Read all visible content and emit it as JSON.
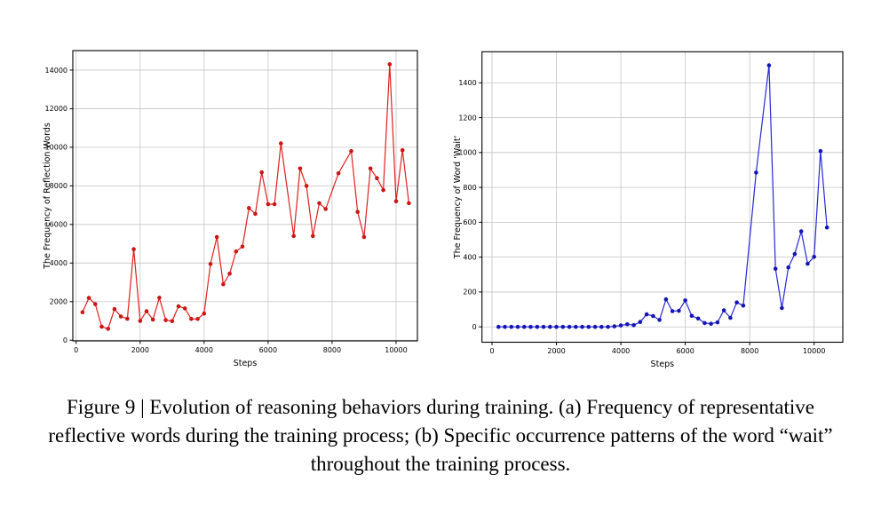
{
  "figure": {
    "caption_lines": [
      "Figure 9 | Evolution of reasoning behaviors during training. (a) Frequency of representative",
      "reflective words during the training process; (b) Specific occurrence patterns of the word “wait”",
      "throughout the training process."
    ]
  },
  "chart_data": [
    {
      "id": "reflection_words",
      "panel": "a",
      "type": "line",
      "title": "",
      "xlabel": "Steps",
      "ylabel": "The Frequency of Reflection Words",
      "x_ticks": [
        0,
        2000,
        4000,
        6000,
        8000,
        10000
      ],
      "y_ticks": [
        0,
        2000,
        4000,
        6000,
        8000,
        10000,
        12000,
        14000
      ],
      "xlim": [
        -103,
        10667
      ],
      "ylim": [
        -35,
        15010
      ],
      "grid": true,
      "legend": "none",
      "line_color": "#e02020",
      "marker_color": "#cc1515",
      "points": [
        [
          200,
          1450
        ],
        [
          400,
          2190
        ],
        [
          600,
          1870
        ],
        [
          800,
          700
        ],
        [
          1000,
          590
        ],
        [
          1200,
          1610
        ],
        [
          1400,
          1230
        ],
        [
          1600,
          1110
        ],
        [
          1800,
          4720
        ],
        [
          2000,
          1000
        ],
        [
          2200,
          1500
        ],
        [
          2400,
          1070
        ],
        [
          2600,
          2200
        ],
        [
          2800,
          1040
        ],
        [
          3000,
          990
        ],
        [
          3200,
          1760
        ],
        [
          3400,
          1650
        ],
        [
          3600,
          1100
        ],
        [
          3800,
          1100
        ],
        [
          4000,
          1380
        ],
        [
          4200,
          3950
        ],
        [
          4400,
          5350
        ],
        [
          4600,
          2900
        ],
        [
          4800,
          3450
        ],
        [
          5000,
          4600
        ],
        [
          5200,
          4850
        ],
        [
          5400,
          6850
        ],
        [
          5600,
          6550
        ],
        [
          5800,
          8700
        ],
        [
          6000,
          7050
        ],
        [
          6200,
          7050
        ],
        [
          6400,
          10200
        ],
        [
          6800,
          5400
        ],
        [
          7000,
          8900
        ],
        [
          7200,
          8000
        ],
        [
          7400,
          5400
        ],
        [
          7600,
          7100
        ],
        [
          7800,
          6800
        ],
        [
          8200,
          8650
        ],
        [
          8600,
          9800
        ],
        [
          8800,
          6650
        ],
        [
          9000,
          5350
        ],
        [
          9200,
          8900
        ],
        [
          9400,
          8400
        ],
        [
          9600,
          7780
        ],
        [
          9800,
          14300
        ],
        [
          10000,
          7200
        ],
        [
          10200,
          9850
        ],
        [
          10400,
          7100
        ]
      ]
    },
    {
      "id": "word_wait",
      "panel": "b",
      "type": "line",
      "title": "",
      "xlabel": "Steps",
      "ylabel": "The Frequency of Word 'Wait'",
      "x_ticks": [
        0,
        2000,
        4000,
        6000,
        8000,
        10000
      ],
      "y_ticks": [
        0,
        200,
        400,
        600,
        800,
        1000,
        1200,
        1400
      ],
      "xlim": [
        -312,
        10891
      ],
      "ylim": [
        -88,
        1578
      ],
      "grid": true,
      "legend": "none",
      "line_color": "#2828d8",
      "marker_color": "#1515b5",
      "points": [
        [
          200,
          0
        ],
        [
          400,
          0
        ],
        [
          600,
          0
        ],
        [
          800,
          0
        ],
        [
          1000,
          0
        ],
        [
          1200,
          0
        ],
        [
          1400,
          0
        ],
        [
          1600,
          0
        ],
        [
          1800,
          0
        ],
        [
          2000,
          0
        ],
        [
          2200,
          0
        ],
        [
          2400,
          0
        ],
        [
          2600,
          0
        ],
        [
          2800,
          0
        ],
        [
          3000,
          0
        ],
        [
          3200,
          0
        ],
        [
          3400,
          0
        ],
        [
          3600,
          0
        ],
        [
          3800,
          3
        ],
        [
          4000,
          8
        ],
        [
          4200,
          15
        ],
        [
          4400,
          10
        ],
        [
          4600,
          28
        ],
        [
          4800,
          72
        ],
        [
          5000,
          62
        ],
        [
          5200,
          40
        ],
        [
          5400,
          158
        ],
        [
          5600,
          90
        ],
        [
          5800,
          92
        ],
        [
          6000,
          152
        ],
        [
          6200,
          63
        ],
        [
          6400,
          48
        ],
        [
          6600,
          22
        ],
        [
          6800,
          18
        ],
        [
          7000,
          26
        ],
        [
          7200,
          95
        ],
        [
          7400,
          52
        ],
        [
          7600,
          140
        ],
        [
          7800,
          122
        ],
        [
          8200,
          885
        ],
        [
          8600,
          1500
        ],
        [
          8800,
          333
        ],
        [
          9000,
          108
        ],
        [
          9200,
          341
        ],
        [
          9400,
          418
        ],
        [
          9600,
          548
        ],
        [
          9800,
          362
        ],
        [
          10000,
          402
        ],
        [
          10200,
          1008
        ],
        [
          10400,
          570
        ]
      ]
    }
  ]
}
